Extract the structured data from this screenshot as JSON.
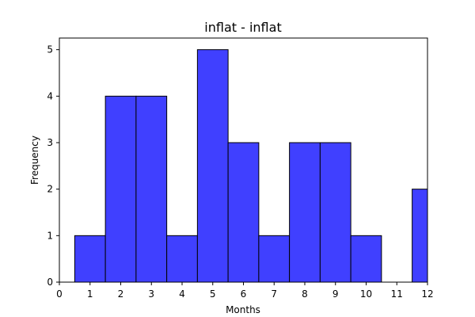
{
  "chart_data": {
    "type": "bar",
    "title": "inflat - inflat",
    "xlabel": "Months",
    "ylabel": "Frequency",
    "xlim": [
      0,
      12
    ],
    "ylim": [
      0,
      5.25
    ],
    "xticks": [
      "0",
      "1",
      "2",
      "3",
      "4",
      "5",
      "6",
      "7",
      "8",
      "9",
      "10",
      "11",
      "12"
    ],
    "yticks": [
      "0",
      "1",
      "2",
      "3",
      "4",
      "5"
    ],
    "bin_width": 1,
    "bins": [
      {
        "center": 1,
        "count": 1
      },
      {
        "center": 2,
        "count": 4
      },
      {
        "center": 3,
        "count": 4
      },
      {
        "center": 4,
        "count": 1
      },
      {
        "center": 5,
        "count": 5
      },
      {
        "center": 6,
        "count": 3
      },
      {
        "center": 7,
        "count": 1
      },
      {
        "center": 8,
        "count": 3
      },
      {
        "center": 9,
        "count": 3
      },
      {
        "center": 10,
        "count": 1
      },
      {
        "center": 11,
        "count": 0
      },
      {
        "center": 12,
        "count": 2
      }
    ],
    "bar_color": "#4040ff",
    "edge_color": "#000000",
    "grid": false,
    "legend": "none"
  }
}
